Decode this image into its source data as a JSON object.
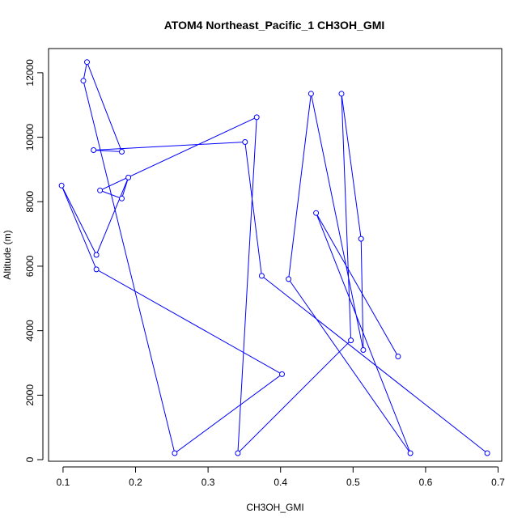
{
  "chart_data": {
    "type": "line",
    "title": "ATOM4 Northeast_Pacific_1 CH3OH_GMI",
    "xlabel": "CH3OH_GMI",
    "ylabel": "Altitude (m)",
    "xlim": [
      0.08,
      0.705
    ],
    "ylim": [
      -50,
      12750
    ],
    "xticks": [
      0.1,
      0.2,
      0.3,
      0.4,
      0.5,
      0.6,
      0.7
    ],
    "xtick_labels": [
      "0.1",
      "0.2",
      "0.3",
      "0.4",
      "0.5",
      "0.6",
      "0.7"
    ],
    "yticks": [
      0,
      2000,
      4000,
      6000,
      8000,
      10000,
      12000
    ],
    "ytick_labels": [
      "0",
      "2000",
      "4000",
      "6000",
      "8000",
      "10000",
      "12000"
    ],
    "grid": false,
    "legend": "none",
    "series": [
      {
        "color": "#0000ff",
        "marker": "open-circle",
        "x": [
          0.685,
          0.374,
          0.351,
          0.142,
          0.181,
          0.133,
          0.128,
          0.254,
          0.402,
          0.146,
          0.098,
          0.146,
          0.19,
          0.181,
          0.151,
          0.367,
          0.341,
          0.497,
          0.484,
          0.511,
          0.514,
          0.442,
          0.411,
          0.579,
          0.449,
          0.562
        ],
        "y": [
          200,
          5700,
          9850,
          9600,
          9550,
          12330,
          11750,
          200,
          2650,
          5900,
          8500,
          6350,
          8750,
          8100,
          8350,
          10620,
          200,
          3700,
          11350,
          6850,
          3400,
          11350,
          5600,
          200,
          7650,
          3200
        ]
      }
    ]
  }
}
